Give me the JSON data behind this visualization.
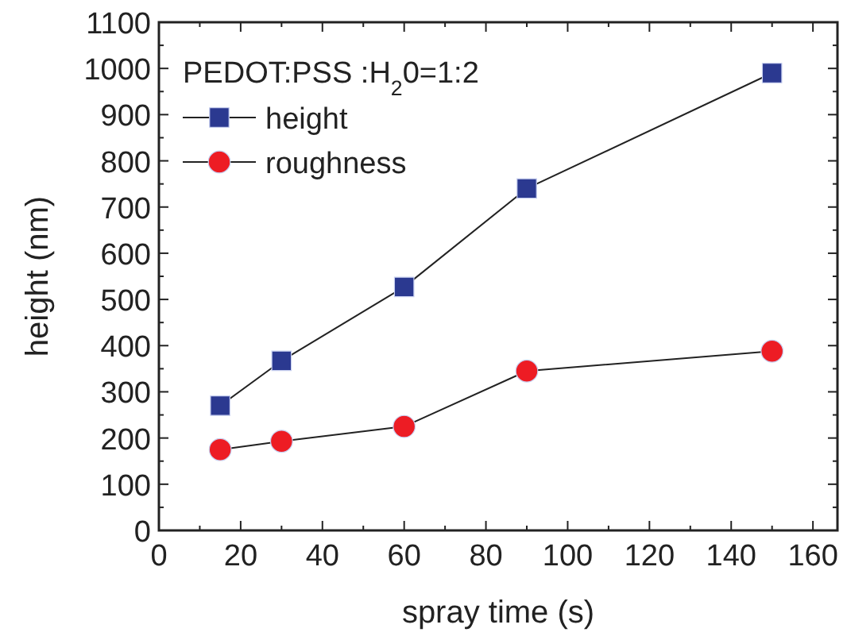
{
  "chart_data": {
    "type": "line",
    "xlabel": "spray time (s)",
    "ylabel": "height (nm)",
    "legend_title": "PEDOT:PSS :H$_{2}$0=1:2",
    "legend": "top left",
    "x": [
      15,
      30,
      60,
      90,
      150
    ],
    "series": [
      {
        "name": "height",
        "color": "#2b3990",
        "marker": "square",
        "values": [
          270,
          367,
          527,
          740,
          990
        ]
      },
      {
        "name": "roughness",
        "color": "#ed1c24",
        "marker": "circle",
        "values": [
          175,
          193,
          225,
          345,
          388
        ]
      }
    ],
    "xlim": [
      0,
      166
    ],
    "xticks": [
      0,
      {
        "value": 10,
        "label": null
      },
      20,
      {
        "value": 30,
        "label": null
      },
      40,
      {
        "value": 50,
        "label": null
      },
      60,
      {
        "value": 70,
        "label": null
      },
      80,
      {
        "value": 90,
        "label": null
      },
      100,
      {
        "value": 110,
        "label": null
      },
      120,
      {
        "value": 130,
        "label": null
      },
      140,
      {
        "value": 150,
        "label": null
      },
      160
    ],
    "ylim": [
      0,
      1100
    ],
    "yticks": [
      0,
      {
        "value": 50,
        "label": null
      },
      100,
      {
        "value": 150,
        "label": null
      },
      200,
      {
        "value": 250,
        "label": null
      },
      300,
      {
        "value": 350,
        "label": null
      },
      400,
      {
        "value": 450,
        "label": null
      },
      500,
      {
        "value": 550,
        "label": null
      },
      600,
      {
        "value": 650,
        "label": null
      },
      700,
      {
        "value": 750,
        "label": null
      },
      800,
      {
        "value": 850,
        "label": null
      },
      900,
      {
        "value": 950,
        "label": null
      },
      1000,
      {
        "value": 1050,
        "label": null
      },
      1100
    ],
    "grid": false,
    "line_style": "solid"
  }
}
